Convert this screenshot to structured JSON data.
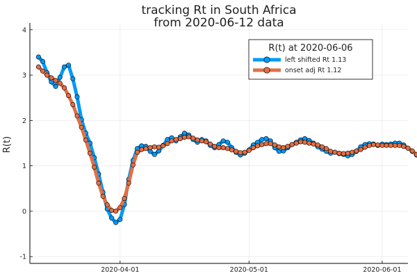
{
  "chart_data": {
    "type": "line",
    "title": "tracking Rt in South Africa",
    "subtitle": "from 2020-06-12 data",
    "xlabel": "",
    "ylabel": "R(t)",
    "x_ticks": [
      "2020-04-01",
      "2020-05-01",
      "2020-06-01"
    ],
    "x_tick_days": [
      0,
      30,
      61
    ],
    "xlim_days": [
      -21,
      67
    ],
    "y_ticks": [
      -1,
      0,
      1,
      2,
      3,
      4
    ],
    "ylim": [
      -1.15,
      4.15
    ],
    "grid": true,
    "legend": {
      "title": "R(t) at 2020-06-06",
      "placement": "top-right"
    },
    "x_start_date": "2020-03-13",
    "series": [
      {
        "name": "left shifted Rt 1.13",
        "color": "#009AF9",
        "values": [
          3.4,
          3.3,
          3.05,
          2.85,
          2.75,
          2.95,
          3.18,
          3.22,
          2.92,
          2.52,
          2.02,
          1.72,
          1.5,
          1.18,
          0.82,
          0.42,
          0.05,
          -0.15,
          -0.25,
          -0.18,
          0.15,
          0.7,
          1.12,
          1.38,
          1.44,
          1.43,
          1.32,
          1.25,
          1.33,
          1.45,
          1.58,
          1.62,
          1.55,
          1.64,
          1.72,
          1.68,
          1.58,
          1.52,
          1.58,
          1.55,
          1.45,
          1.4,
          1.47,
          1.55,
          1.52,
          1.4,
          1.3,
          1.24,
          1.28,
          1.35,
          1.46,
          1.52,
          1.58,
          1.6,
          1.55,
          1.4,
          1.32,
          1.33,
          1.4,
          1.47,
          1.52,
          1.57,
          1.6,
          1.56,
          1.5,
          1.42,
          1.37,
          1.32,
          1.28,
          1.3,
          1.27,
          1.25,
          1.22,
          1.25,
          1.32,
          1.42,
          1.47,
          1.49,
          1.48,
          1.45,
          1.48,
          1.47,
          1.48,
          1.5,
          1.5,
          1.46,
          1.39,
          1.32,
          1.24,
          1.18,
          1.14
        ]
      },
      {
        "name": "onset adj Rt 1.12",
        "color": "#E26F46",
        "values": [
          3.18,
          3.09,
          3.0,
          2.94,
          2.88,
          2.82,
          2.72,
          2.55,
          2.35,
          2.1,
          1.85,
          1.57,
          1.28,
          0.97,
          0.62,
          0.33,
          0.14,
          0.02,
          0.0,
          0.08,
          0.28,
          0.62,
          1.02,
          1.3,
          1.36,
          1.38,
          1.4,
          1.42,
          1.41,
          1.44,
          1.49,
          1.55,
          1.58,
          1.6,
          1.63,
          1.64,
          1.61,
          1.57,
          1.55,
          1.53,
          1.48,
          1.43,
          1.4,
          1.4,
          1.38,
          1.35,
          1.32,
          1.29,
          1.3,
          1.34,
          1.4,
          1.44,
          1.47,
          1.49,
          1.49,
          1.46,
          1.42,
          1.4,
          1.43,
          1.47,
          1.5,
          1.53,
          1.52,
          1.5,
          1.48,
          1.46,
          1.42,
          1.38,
          1.32,
          1.3,
          1.28,
          1.27,
          1.28,
          1.3,
          1.33,
          1.36,
          1.41,
          1.45,
          1.47,
          1.46,
          1.45,
          1.45,
          1.45,
          1.45,
          1.45,
          1.43,
          1.39,
          1.33,
          1.25,
          1.18,
          1.12
        ]
      }
    ]
  }
}
